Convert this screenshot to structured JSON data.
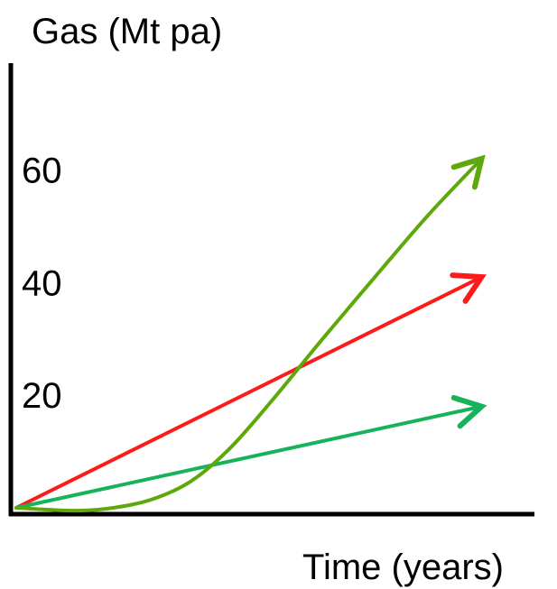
{
  "chart_data": {
    "type": "line",
    "ylabel": "Gas (Mt pa)",
    "xlabel": "Time (years)",
    "title": "",
    "y_ticks": [
      "20",
      "40",
      "60"
    ],
    "y_tick_values": [
      20,
      40,
      60
    ],
    "ylim": [
      0,
      70
    ],
    "xlim": [
      0,
      10
    ],
    "grid": false,
    "series": [
      {
        "color": "#ff1a1a",
        "arrow": true,
        "x": [
          0,
          9.6
        ],
        "y": [
          0,
          41
        ]
      },
      {
        "color": "#17b35a",
        "arrow": true,
        "x": [
          0,
          9.6
        ],
        "y": [
          0,
          18
        ]
      },
      {
        "color": "#5fa80c",
        "arrow": true,
        "curve": true,
        "x": [
          0,
          0.6,
          1.3,
          2.0,
          2.8,
          3.6,
          4.4,
          5.3,
          6.3,
          7.4,
          8.5,
          9.6
        ],
        "y": [
          0,
          -0.3,
          -0.5,
          0,
          1.5,
          4.7,
          10.5,
          19.3,
          29.8,
          41.0,
          52.0,
          62.0
        ]
      }
    ]
  }
}
